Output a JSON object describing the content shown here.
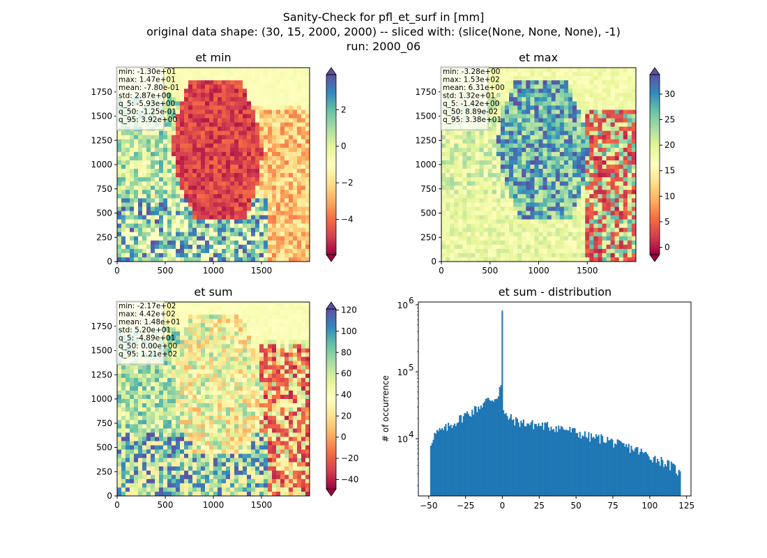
{
  "figure": {
    "suptitle_lines": [
      "Sanity-Check for pfl_et_surf in [mm]",
      "original data shape: (30, 15, 2000, 2000) -- sliced with: (slice(None, None, None), -1)",
      "run: 2000_06"
    ]
  },
  "chart_data": [
    {
      "type": "heatmap",
      "title": "et min",
      "colormap": "Spectral",
      "xlim": [
        0,
        2000
      ],
      "ylim": [
        0,
        2000
      ],
      "x_ticks": [
        0,
        500,
        1000,
        1500
      ],
      "y_ticks": [
        0,
        250,
        500,
        750,
        1000,
        1250,
        1500,
        1750
      ],
      "colorbar": {
        "range": [
          -5.93,
          3.92
        ],
        "ticks": [
          -4,
          -2,
          0,
          2
        ],
        "extend": "both"
      },
      "stats": [
        "min: -1.30e+01",
        "max: 1.47e+01",
        "mean: -7.80e-01",
        "std: 2.87e+00",
        "q_5: -5.93e+00",
        "q_50: -1.25e-01",
        "q_95: 3.92e+00"
      ]
    },
    {
      "type": "heatmap",
      "title": "et max",
      "colormap": "Spectral",
      "xlim": [
        0,
        2000
      ],
      "ylim": [
        0,
        2000
      ],
      "x_ticks": [
        0,
        500,
        1000,
        1500
      ],
      "y_ticks": [
        0,
        250,
        500,
        750,
        1000,
        1250,
        1500,
        1750
      ],
      "colorbar": {
        "range": [
          -1.42,
          33.8
        ],
        "ticks": [
          0,
          5,
          10,
          15,
          20,
          25,
          30
        ],
        "extend": "both"
      },
      "stats": [
        "min: -3.28e+00",
        "max: 1.53e+02",
        "mean: 6.31e+00",
        "std: 1.32e+01",
        "q_5: -1.42e+00",
        "q_50: 8.89e-02",
        "q_95: 3.38e+01"
      ]
    },
    {
      "type": "heatmap",
      "title": "et sum",
      "colormap": "Spectral",
      "xlim": [
        0,
        2000
      ],
      "ylim": [
        0,
        2000
      ],
      "x_ticks": [
        0,
        500,
        1000,
        1500
      ],
      "y_ticks": [
        0,
        250,
        500,
        750,
        1000,
        1250,
        1500,
        1750
      ],
      "colorbar": {
        "range": [
          -48.9,
          121
        ],
        "ticks": [
          -40,
          -20,
          0,
          20,
          40,
          60,
          80,
          100,
          120
        ],
        "extend": "both"
      },
      "stats": [
        "min: -2.17e+02",
        "max: 4.42e+02",
        "mean: 1.48e+01",
        "std: 5.20e+01",
        "q_5: -4.89e+01",
        "q_50: 0.00e+00",
        "q_95: 1.21e+02"
      ]
    },
    {
      "type": "bar",
      "title": "et sum - distribution",
      "ylabel": "# of occurrence",
      "xlim": [
        -57,
        128
      ],
      "y_scale": "log",
      "ylim": [
        1400,
        1100000
      ],
      "x_ticks": [
        -50,
        -25,
        0,
        25,
        50,
        75,
        100,
        125
      ],
      "y_tick_labels": [
        "10",
        "10",
        "10"
      ],
      "y_tick_exponents": [
        "4",
        "5",
        "6"
      ],
      "y_tick_values": [
        10000,
        100000,
        1000000
      ],
      "color": "#1f77b4",
      "bins": {
        "start": -49,
        "end": 121,
        "count": 200
      },
      "anchors": [
        [
          -49,
          8000
        ],
        [
          -47,
          11000
        ],
        [
          -44,
          12500
        ],
        [
          -40,
          13500
        ],
        [
          -35,
          16000
        ],
        [
          -30,
          19000
        ],
        [
          -25,
          23000
        ],
        [
          -20,
          26000
        ],
        [
          -15,
          31000
        ],
        [
          -10,
          38000
        ],
        [
          -5,
          40000
        ],
        [
          -3,
          45000
        ],
        [
          -1.5,
          62000
        ],
        [
          -0.5,
          65000
        ],
        [
          0,
          820000
        ],
        [
          0.5,
          25000
        ],
        [
          2,
          22000
        ],
        [
          10,
          18000
        ],
        [
          20,
          16500
        ],
        [
          30,
          15500
        ],
        [
          40,
          14500
        ],
        [
          50,
          12500
        ],
        [
          60,
          10500
        ],
        [
          70,
          10000
        ],
        [
          80,
          8000
        ],
        [
          90,
          7000
        ],
        [
          100,
          5500
        ],
        [
          110,
          4500
        ],
        [
          118,
          3500
        ],
        [
          120,
          3000
        ]
      ]
    }
  ]
}
